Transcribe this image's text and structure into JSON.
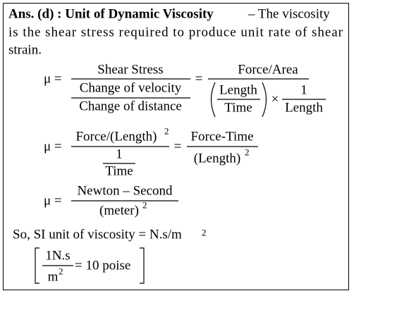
{
  "intro": {
    "bold": "Ans. (d) : Unit of Dynamic Viscosity",
    "lines": [
      "– The viscosity",
      "is the shear stress required to produce unit rate of shear",
      "strain."
    ]
  },
  "eq1": {
    "lhs": "μ =",
    "num": "Shear Stress",
    "den_num": "Change of velocity",
    "den_den": "Change of distance",
    "eq": "=",
    "rhs_num": "Force/Area",
    "paren_num": "Length",
    "paren_den": "Time",
    "times": "×",
    "frac_num": "1",
    "frac_den": "Length"
  },
  "eq2": {
    "lhs": "μ =",
    "num": "Force/(Length)",
    "num_exp": "2",
    "den_num": "1",
    "den_den": "Time",
    "eq": "=",
    "rhs_num": "Force-Time",
    "rhs_den": "(Length)",
    "rhs_den_exp": "2"
  },
  "eq3": {
    "lhs": "μ =",
    "num": "Newton – Second",
    "den": "(meter)",
    "den_exp": "2"
  },
  "si": {
    "text": "So, SI unit of viscosity = N.s/m",
    "exp": "2"
  },
  "poise": {
    "num": "1N.s",
    "den": "m",
    "den_exp": "2",
    "rhs": "= 10 poise"
  }
}
